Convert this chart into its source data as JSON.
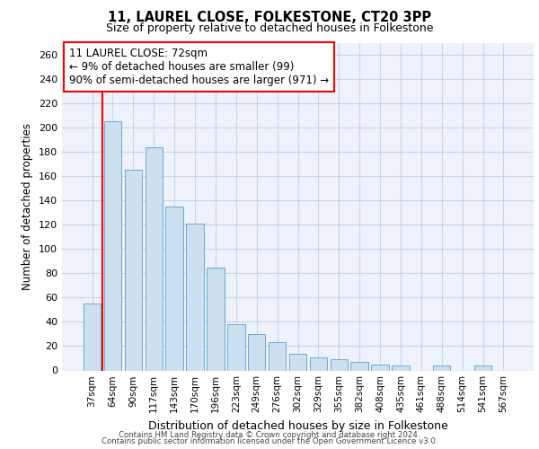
{
  "title1": "11, LAUREL CLOSE, FOLKESTONE, CT20 3PP",
  "title2": "Size of property relative to detached houses in Folkestone",
  "xlabel": "Distribution of detached houses by size in Folkestone",
  "ylabel": "Number of detached properties",
  "categories": [
    "37sqm",
    "64sqm",
    "90sqm",
    "117sqm",
    "143sqm",
    "170sqm",
    "196sqm",
    "223sqm",
    "249sqm",
    "276sqm",
    "302sqm",
    "329sqm",
    "355sqm",
    "382sqm",
    "408sqm",
    "435sqm",
    "461sqm",
    "488sqm",
    "514sqm",
    "541sqm",
    "567sqm"
  ],
  "values": [
    55,
    205,
    165,
    184,
    135,
    121,
    85,
    38,
    30,
    23,
    14,
    11,
    9,
    7,
    5,
    4,
    0,
    4,
    0,
    4,
    0
  ],
  "bar_color": "#cce0f0",
  "bar_edge_color": "#6aaad4",
  "vline_color": "red",
  "vline_x": 0.5,
  "annotation_text": "11 LAUREL CLOSE: 72sqm\n← 9% of detached houses are smaller (99)\n90% of semi-detached houses are larger (971) →",
  "annotation_box_color": "white",
  "annotation_box_edge": "red",
  "ylim": [
    0,
    270
  ],
  "yticks": [
    0,
    20,
    40,
    60,
    80,
    100,
    120,
    140,
    160,
    180,
    200,
    220,
    240,
    260
  ],
  "grid_color": "#c8d4e8",
  "background_color": "#eef2fa",
  "footer1": "Contains HM Land Registry data © Crown copyright and database right 2024.",
  "footer2": "Contains public sector information licensed under the Open Government Licence v3.0."
}
